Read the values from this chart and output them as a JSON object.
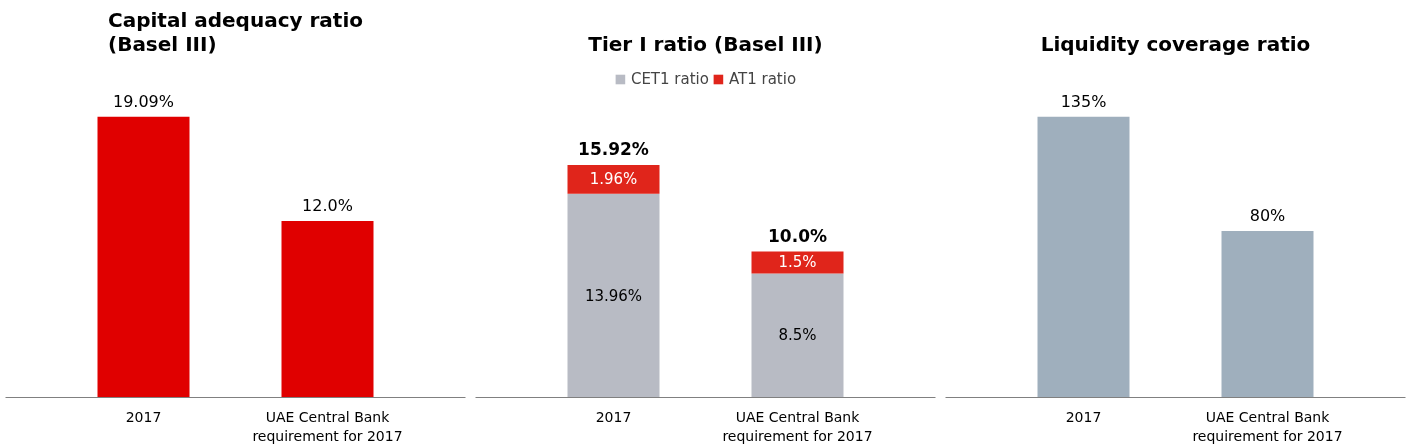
{
  "chart_data": [
    {
      "type": "bar",
      "title": "Capital adequacy ratio\n(Basel III)",
      "categories": [
        "2017",
        "UAE Central Bank\nrequirement for 2017"
      ],
      "values": [
        19.09,
        12.0
      ],
      "value_labels": [
        "19.09%",
        "12.0%"
      ],
      "color": "#e00000",
      "grid": false,
      "legend": false
    },
    {
      "type": "bar",
      "title": "Tier I ratio (Basel III)",
      "categories": [
        "2017",
        "UAE Central Bank\nrequirement for 2017"
      ],
      "stacked": true,
      "series": [
        {
          "name": "CET1 ratio",
          "color": "#b8bbc4",
          "values": [
            13.96,
            8.5
          ],
          "value_labels": [
            "13.96%",
            "8.5%"
          ]
        },
        {
          "name": "AT1 ratio",
          "color": "#e0251b",
          "values": [
            1.96,
            1.5
          ],
          "value_labels": [
            "1.96%",
            "1.5%"
          ]
        }
      ],
      "totals": [
        "15.92%",
        "10.0%"
      ],
      "grid": false,
      "legend": "top"
    },
    {
      "type": "bar",
      "title": "Liquidity coverage ratio",
      "categories": [
        "2017",
        "UAE Central Bank\nrequirement for 2017"
      ],
      "values": [
        135,
        80
      ],
      "value_labels": [
        "135%",
        "80%"
      ],
      "color": "#9fafbd",
      "grid": false,
      "legend": false
    }
  ]
}
